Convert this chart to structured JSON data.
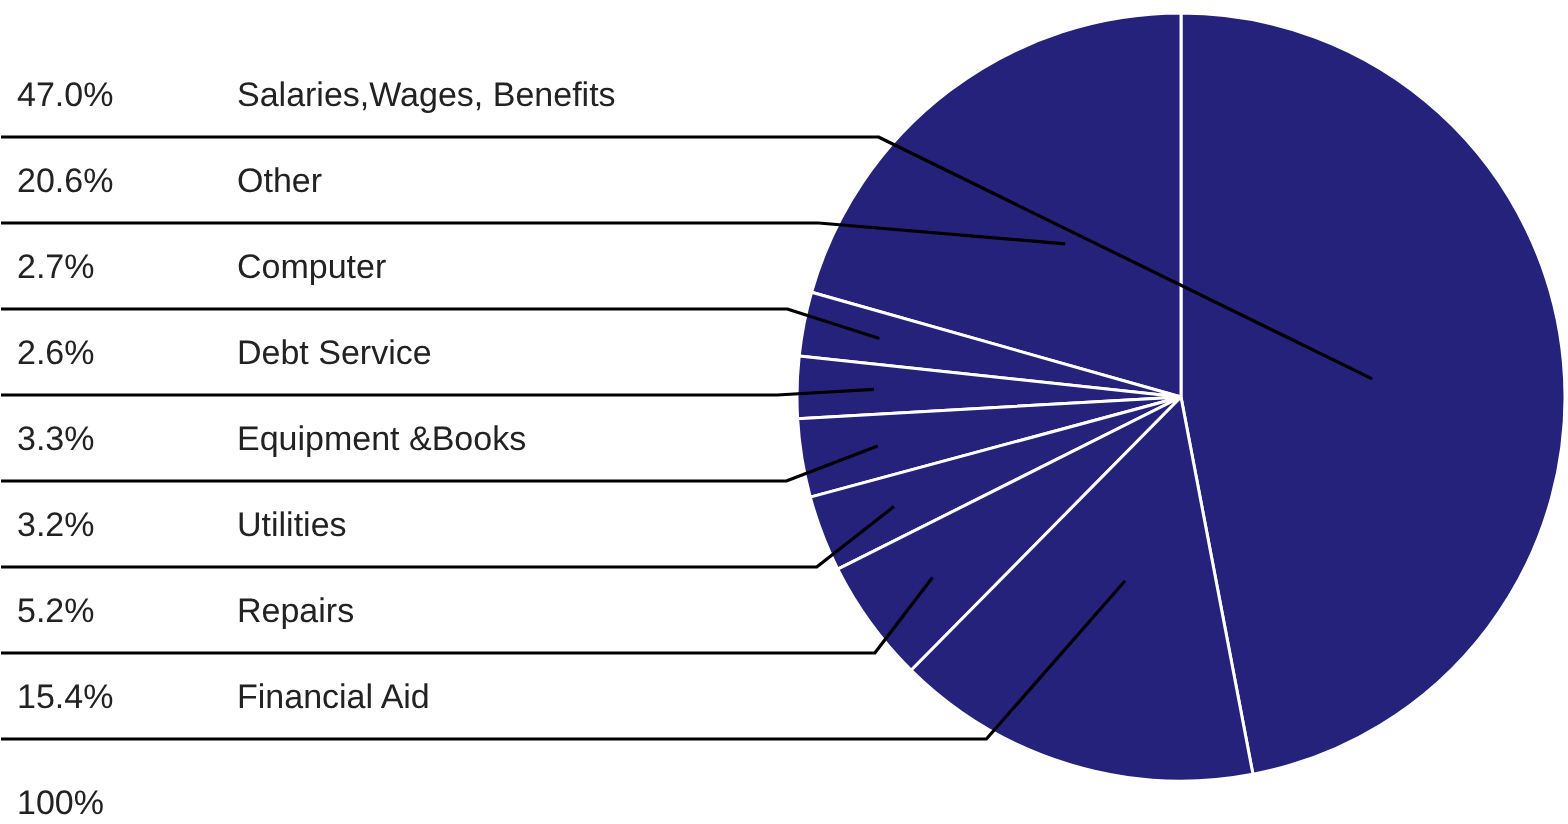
{
  "chart_data": {
    "type": "pie",
    "categories": [
      "Salaries,Wages, Benefits",
      "Other",
      "Computer",
      "Debt Service",
      "Equipment &Books",
      "Utilities",
      "Repairs",
      "Financial Aid"
    ],
    "values": [
      47.0,
      20.6,
      2.7,
      2.6,
      3.3,
      3.2,
      5.2,
      15.4
    ],
    "value_labels": [
      "47.0%",
      "20.6%",
      "2.7%",
      "2.6%",
      "3.3%",
      "3.2%",
      "5.2%",
      "15.4%"
    ],
    "colors": [
      "#24227a",
      "#24227a",
      "#24227a",
      "#24227a",
      "#24227a",
      "#24227a",
      "#24227a",
      "#24227a"
    ],
    "annotations": [
      "100%"
    ]
  }
}
